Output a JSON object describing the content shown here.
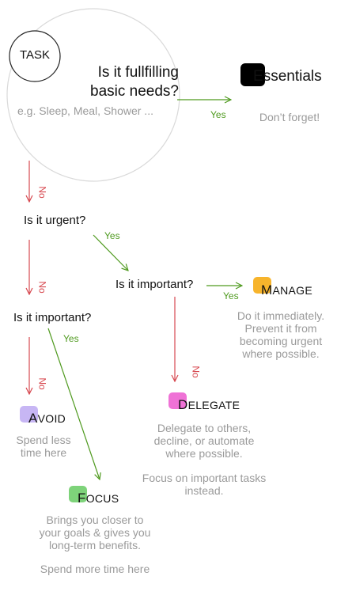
{
  "start": {
    "task_label": "TASK",
    "question_line1": "Is it fullfilling",
    "question_line2": "basic needs?",
    "example": "e.g. Sleep, Meal, Shower ..."
  },
  "essentials": {
    "first": "E",
    "rest": "ssentials",
    "desc": "Don’t forget!",
    "color": "#000000"
  },
  "urgent_q": "Is it urgent?",
  "important_q_yes": "Is it important?",
  "important_q_no": "Is it important?",
  "labels": {
    "yes": "Yes",
    "no": "No"
  },
  "manage": {
    "first": "M",
    "rest": "ANAGE",
    "color": "#f7b42c",
    "desc": [
      "Do it immediately.",
      "Prevent it from",
      "becoming urgent",
      "where possible."
    ]
  },
  "delegate": {
    "first": "D",
    "rest": "ELEGATE",
    "color": "#ef72d6",
    "desc": [
      "Delegate to others,",
      "decline, or automate",
      "where possible."
    ],
    "desc2": [
      "Focus on important tasks",
      "instead."
    ]
  },
  "avoid": {
    "first": "A",
    "rest": "VOID",
    "color": "#c7b6f4",
    "desc": [
      "Spend less",
      "time here"
    ]
  },
  "focus": {
    "first": "F",
    "rest": "OCUS",
    "color": "#7ed37a",
    "desc": [
      "Brings you closer to",
      "your goals & gives you",
      "long-term benefits."
    ],
    "desc2": "Spend more time here"
  },
  "colors": {
    "no_arrow": "#d7484f",
    "yes_arrow": "#4f9a1f",
    "circle": "#d9d9d9"
  }
}
